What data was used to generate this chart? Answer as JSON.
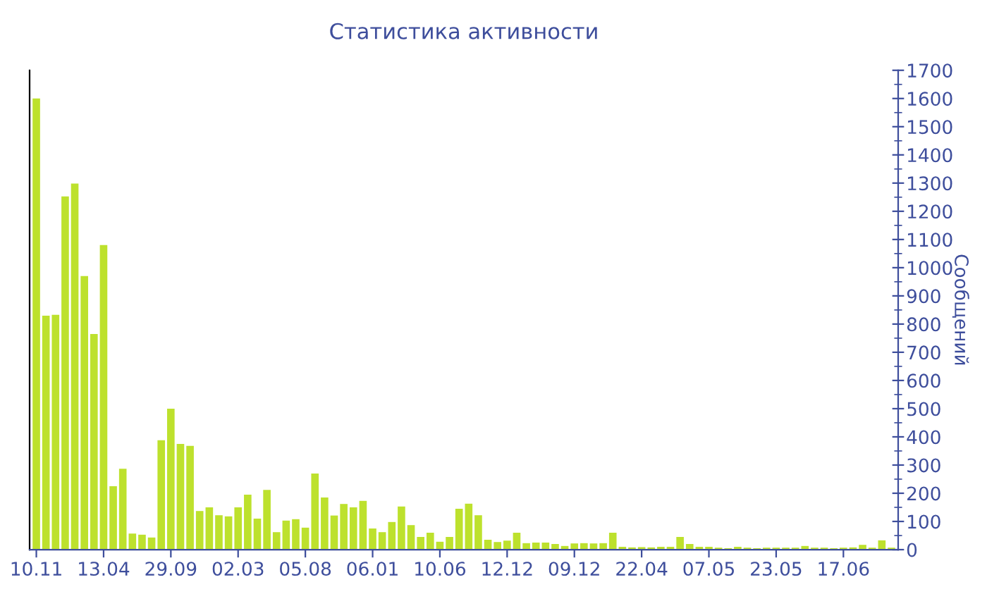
{
  "chart_data": {
    "type": "bar",
    "title": "Статистика активности",
    "ylabel": "Сообщений",
    "categories": [
      "10.11",
      null,
      null,
      null,
      null,
      null,
      null,
      "13.04",
      null,
      null,
      null,
      null,
      null,
      null,
      "29.09",
      null,
      null,
      null,
      null,
      null,
      null,
      "02.03",
      null,
      null,
      null,
      null,
      null,
      null,
      "05.08",
      null,
      null,
      null,
      null,
      null,
      null,
      "06.01",
      null,
      null,
      null,
      null,
      null,
      null,
      "10.06",
      null,
      null,
      null,
      null,
      null,
      null,
      "12.12",
      null,
      null,
      null,
      null,
      null,
      null,
      "09.12",
      null,
      null,
      null,
      null,
      null,
      null,
      "22.04",
      null,
      null,
      null,
      null,
      null,
      null,
      "07.05",
      null,
      null,
      null,
      null,
      null,
      null,
      "23.05",
      null,
      null,
      null,
      null,
      null,
      null,
      "17.06",
      null,
      null,
      null,
      null,
      null
    ],
    "values": [
      1600,
      830,
      833,
      1253,
      1298,
      970,
      765,
      1080,
      225,
      287,
      57,
      53,
      43,
      388,
      500,
      375,
      368,
      137,
      150,
      122,
      118,
      150,
      195,
      110,
      212,
      62,
      103,
      108,
      78,
      270,
      185,
      121,
      162,
      150,
      173,
      75,
      62,
      98,
      153,
      87,
      45,
      60,
      28,
      45,
      145,
      163,
      122,
      35,
      27,
      32,
      60,
      23,
      25,
      25,
      20,
      13,
      22,
      23,
      22,
      23,
      60,
      10,
      8,
      9,
      8,
      10,
      10,
      45,
      20,
      10,
      10,
      7,
      5,
      10,
      7,
      5,
      7,
      7,
      7,
      7,
      13,
      7,
      7,
      5,
      7,
      8,
      17,
      7,
      33,
      7
    ],
    "color": "#bde12d",
    "ylim": [
      0,
      1700
    ],
    "yticks": [
      0,
      100,
      200,
      300,
      400,
      500,
      600,
      700,
      800,
      900,
      1000,
      1100,
      1200,
      1300,
      1400,
      1500,
      1600,
      1700
    ],
    "grid": false
  }
}
